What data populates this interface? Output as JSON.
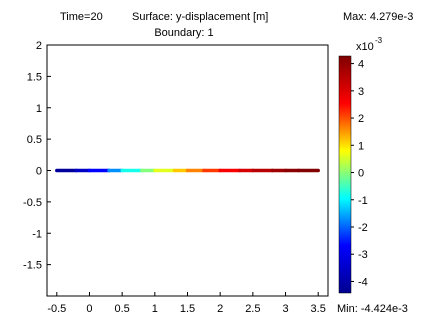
{
  "title_line1": {
    "time": "Time=20",
    "surface": "Surface: y-displacement [m]",
    "max": "Max: 4.279e-3"
  },
  "title_line2": "Boundary: 1",
  "min_label": "Min: -4.424e-3",
  "colorbar": {
    "exponent_base": "x10",
    "exponent_power": "-3",
    "tick_values": [
      4,
      3,
      2,
      1,
      0,
      -1,
      -2,
      -3,
      -4
    ],
    "tick_labels": [
      "4",
      "3",
      "2",
      "1",
      "0",
      "-1",
      "-2",
      "-3",
      "-4"
    ],
    "range": [
      -4.424,
      4.279
    ],
    "colors": [
      "#00008f",
      "#0000ff",
      "#00ffff",
      "#ffff00",
      "#ff0000",
      "#800000"
    ]
  },
  "chart_data": {
    "type": "line",
    "title": "Time=20 Surface: y-displacement [m]",
    "subtitle": "Boundary: 1",
    "xlim": [
      -0.65,
      3.65
    ],
    "ylim": [
      -2,
      2
    ],
    "x_ticks": [
      -0.5,
      0,
      0.5,
      1,
      1.5,
      2,
      2.5,
      3,
      3.5
    ],
    "x_tick_labels": [
      "-0.5",
      "0",
      "0.5",
      "1",
      "1.5",
      "2",
      "2.5",
      "3",
      "3.5"
    ],
    "y_ticks": [
      2,
      1.5,
      1,
      0.5,
      0,
      -0.5,
      -1,
      -1.5
    ],
    "y_tick_labels": [
      "2",
      "1.5",
      "1",
      "0.5",
      "0",
      "-0.5",
      "-1",
      "-1.5"
    ],
    "series": [
      {
        "x": [
          -0.5,
          -0.2,
          0.0,
          0.3,
          0.5,
          0.8,
          1.0,
          1.3,
          1.5,
          1.75,
          2.0,
          2.3,
          2.5,
          2.8,
          3.0,
          3.2,
          3.5
        ],
        "y": [
          0,
          0,
          0,
          0,
          0,
          0,
          0,
          0,
          0,
          0,
          0,
          0,
          0,
          0,
          0,
          0,
          0
        ],
        "color_value": [
          -4.4,
          -4.0,
          -3.2,
          -2.2,
          -1.2,
          -0.4,
          0.3,
          0.9,
          1.4,
          1.9,
          2.4,
          2.9,
          3.3,
          3.7,
          4.0,
          4.2,
          4.28
        ]
      }
    ],
    "grid": false,
    "legend": "colorbar-right"
  }
}
